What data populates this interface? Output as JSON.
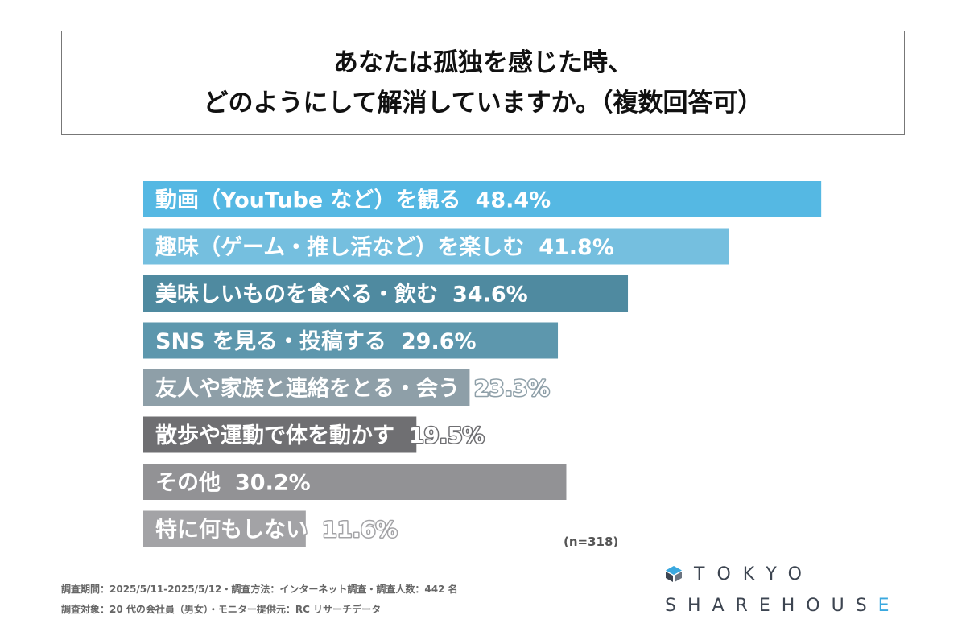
{
  "title": {
    "line1": "あなたは孤独を感じた時、",
    "line2": "どのようにして解消していますか。（複数回答可）"
  },
  "chart_data": {
    "type": "bar",
    "orientation": "horizontal",
    "unit": "%",
    "categories": [
      "動画（YouTube など）を観る",
      "趣味（ゲーム・推し活など）を楽しむ",
      "美味しいものを食べる・飲む",
      "SNS を見る・投稿する",
      "友人や家族と連絡をとる・会う",
      "散歩や運動で体を動かす",
      "その他",
      "特に何もしない"
    ],
    "values": [
      48.4,
      41.8,
      34.6,
      29.6,
      23.3,
      19.5,
      30.2,
      11.6
    ],
    "value_labels": [
      "48.4%",
      "41.8%",
      "34.6%",
      "29.6%",
      "23.3%",
      "19.5%",
      "30.2%",
      "11.6%"
    ],
    "colors": [
      "#55b8e3",
      "#75bfdf",
      "#4f8aa0",
      "#5d97ad",
      "#8e9fa8",
      "#6f6f72",
      "#929295",
      "#a3a3a6"
    ],
    "xlim": [
      0,
      50
    ],
    "legend": "none",
    "grid": false
  },
  "sample_size": "(n=318)",
  "footnotes": [
    "調査期間：2025/5/11-2025/5/12・調査方法：インターネット調査・調査人数：442 名",
    "調査対象：20 代の会社員（男女）・モニター提供元：RC リサーチデータ"
  ],
  "logo": {
    "line1": "TOKYO",
    "line2_main": "SHAREHOUS",
    "line2_accent": "E"
  }
}
